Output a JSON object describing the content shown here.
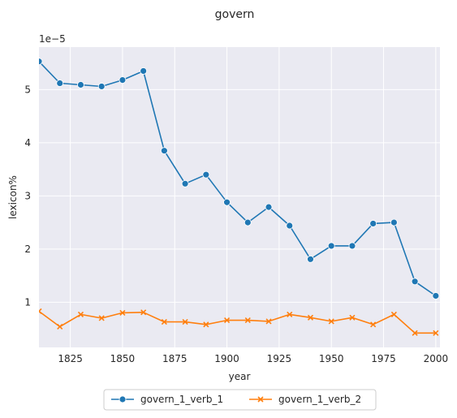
{
  "chart_data": {
    "type": "line",
    "title": "govern",
    "xlabel": "year",
    "ylabel": "lexicon%",
    "y_offset_text": "1e−5",
    "xlim": [
      1810,
      2002
    ],
    "ylim": [
      0.15,
      5.8
    ],
    "x_ticks": [
      1825,
      1850,
      1875,
      1900,
      1925,
      1950,
      1975,
      2000
    ],
    "y_ticks": [
      1,
      2,
      3,
      4,
      5
    ],
    "grid": true,
    "legend_position": "bottom-center",
    "x": [
      1810,
      1820,
      1830,
      1840,
      1850,
      1860,
      1870,
      1880,
      1890,
      1900,
      1910,
      1920,
      1930,
      1940,
      1950,
      1960,
      1970,
      1980,
      1990,
      2000
    ],
    "series": [
      {
        "name": "govern_1_verb_1",
        "color": "#1f77b4",
        "marker": "circle",
        "values": [
          5.53,
          5.12,
          5.09,
          5.06,
          5.18,
          5.35,
          3.85,
          3.23,
          3.4,
          2.88,
          2.5,
          2.79,
          2.44,
          1.81,
          2.06,
          2.06,
          2.48,
          2.5,
          1.39,
          1.12
        ]
      },
      {
        "name": "govern_1_verb_2",
        "color": "#ff7f0e",
        "marker": "x",
        "values": [
          0.83,
          0.54,
          0.77,
          0.7,
          0.8,
          0.81,
          0.63,
          0.63,
          0.58,
          0.66,
          0.66,
          0.64,
          0.77,
          0.71,
          0.64,
          0.71,
          0.58,
          0.77,
          0.42,
          0.42
        ]
      }
    ]
  }
}
